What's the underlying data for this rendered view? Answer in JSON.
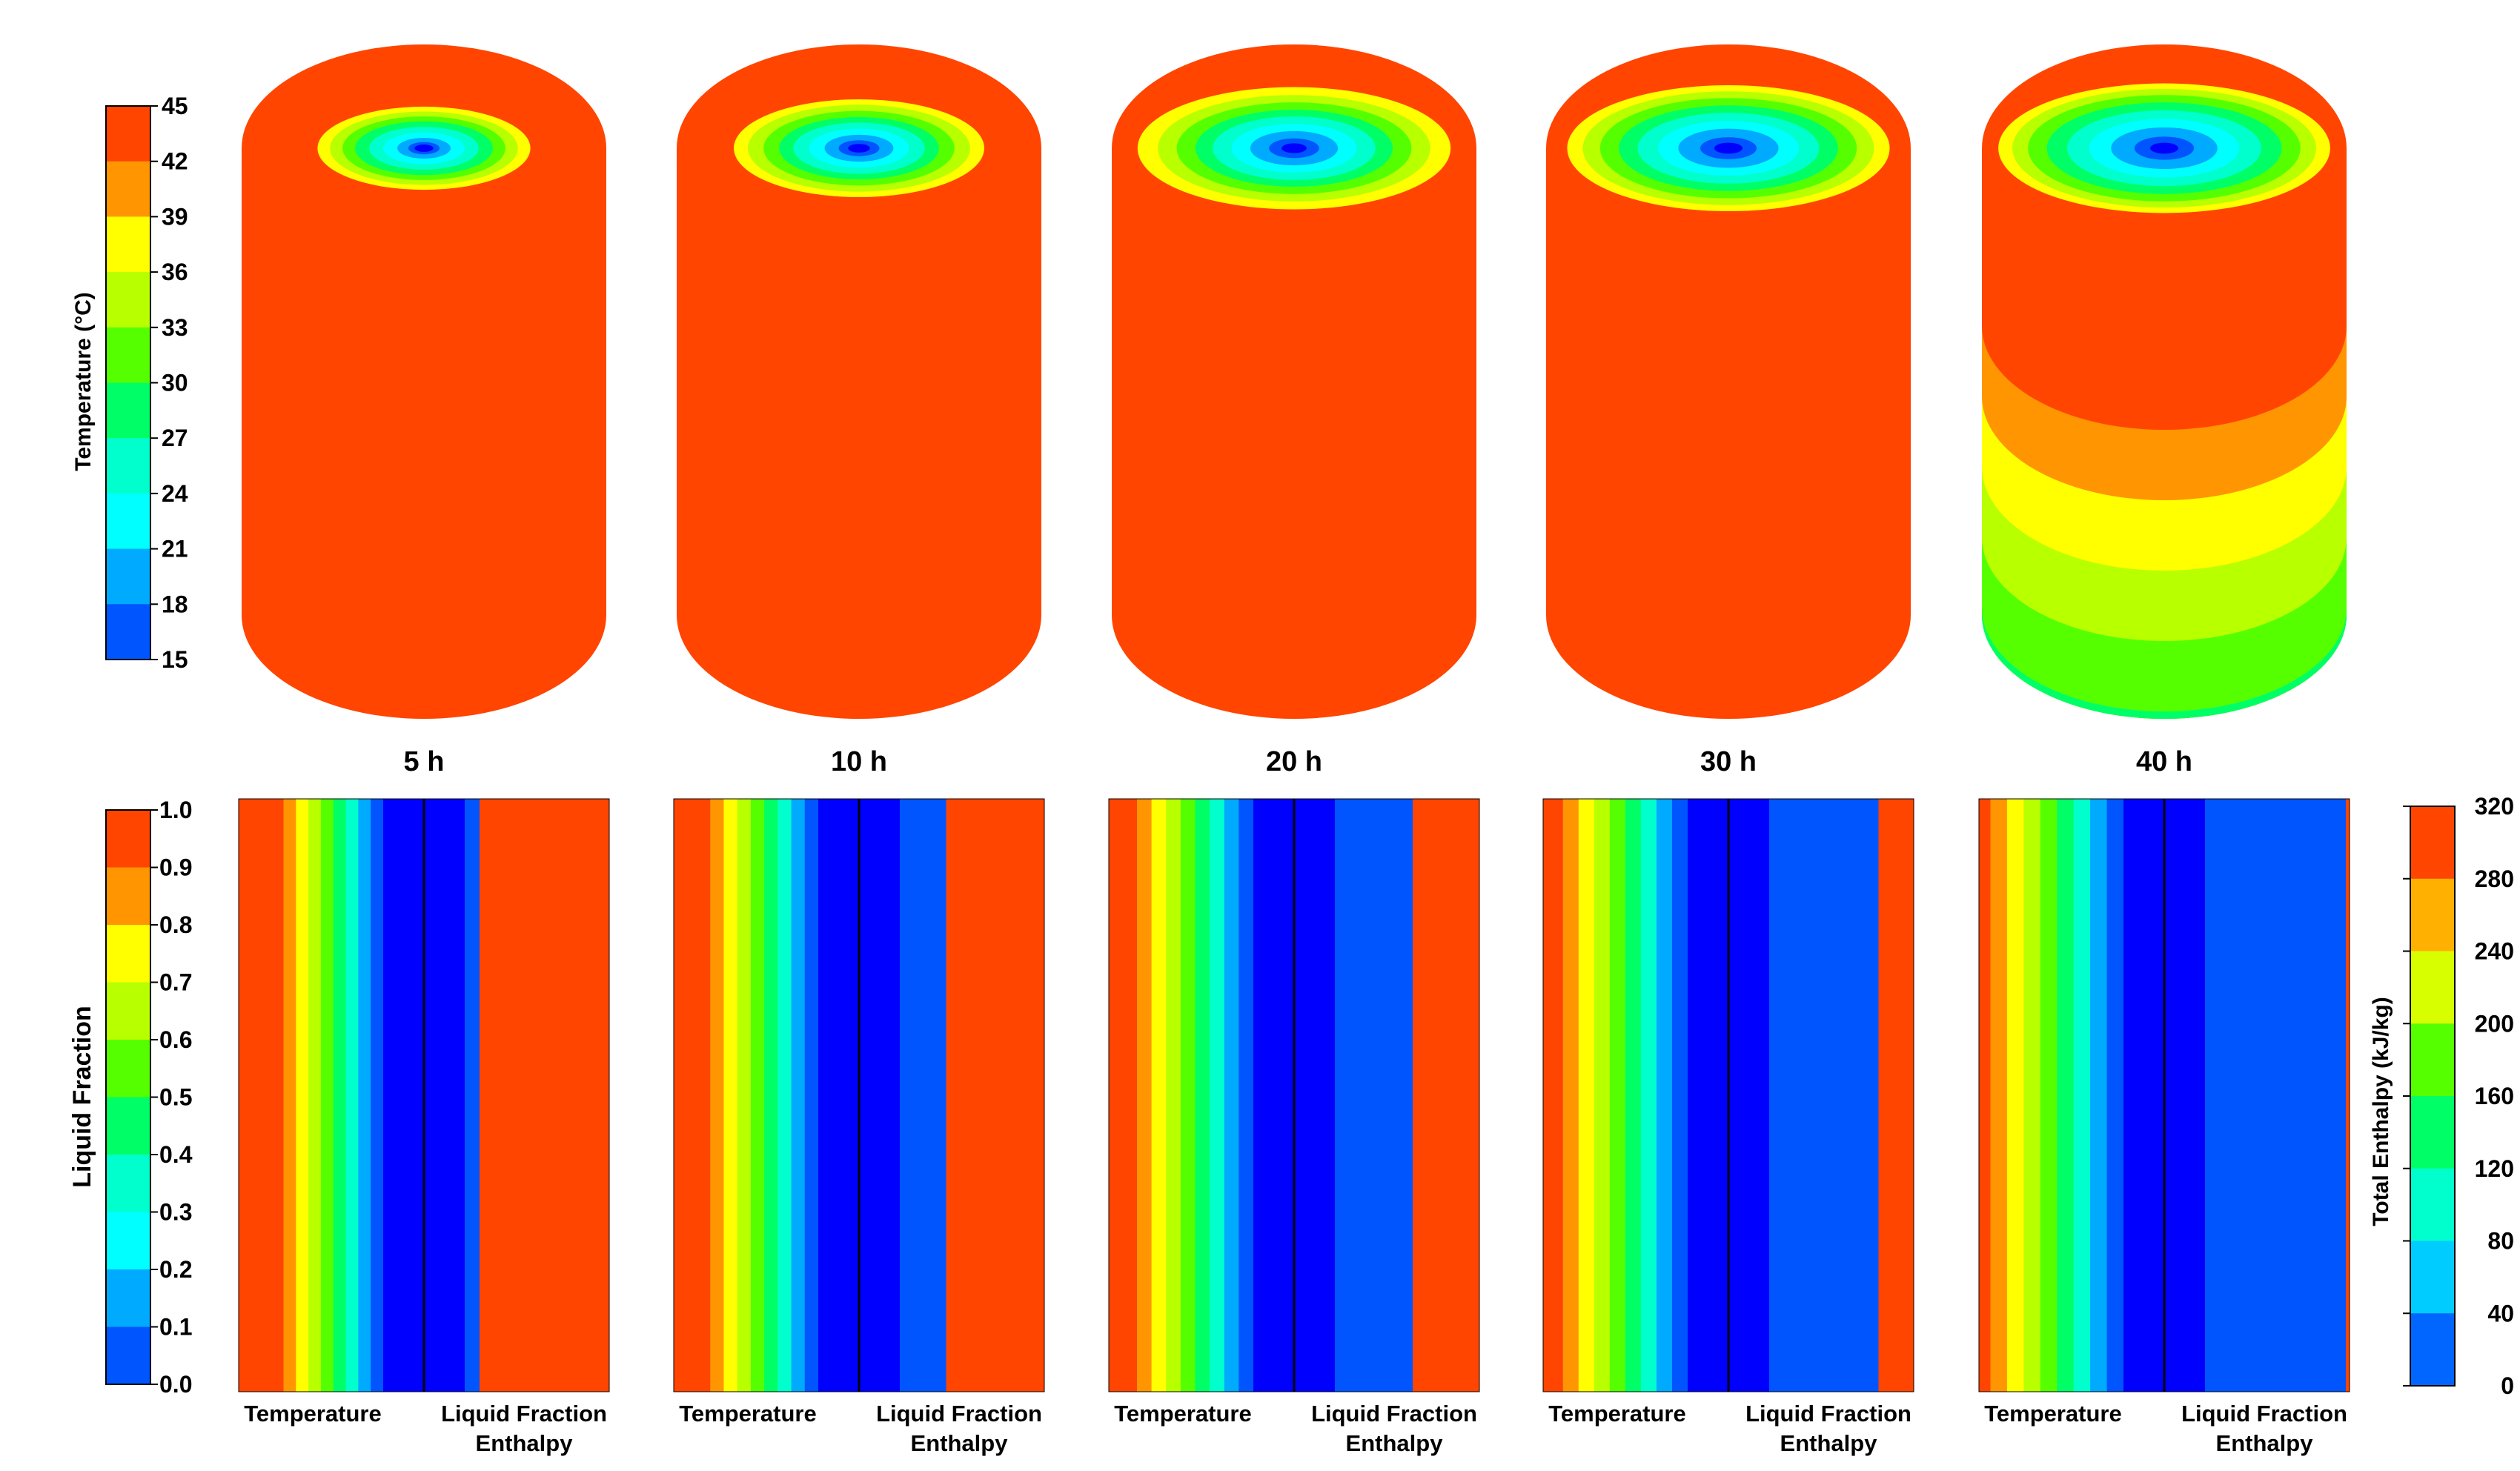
{
  "temperature_legend": {
    "title": "Temperature (°C)",
    "ticks": [
      "45",
      "42",
      "39",
      "36",
      "33",
      "30",
      "27",
      "24",
      "21",
      "18",
      "15"
    ]
  },
  "liquid_legend": {
    "title": "Liquid Fraction",
    "ticks": [
      "1.0",
      "0.9",
      "0.8",
      "0.7",
      "0.6",
      "0.5",
      "0.4",
      "0.3",
      "0.2",
      "0.1",
      "0.0"
    ]
  },
  "enthalpy_legend": {
    "title": "Total Enthalpy (kJ/kg)",
    "ticks": [
      "320",
      "280",
      "240",
      "200",
      "160",
      "120",
      "80",
      "40",
      "0"
    ]
  },
  "palette_hot_to_cold": [
    "#ff4500",
    "#ff9500",
    "#ffff00",
    "#b8ff00",
    "#55ff00",
    "#00ff66",
    "#00ffcc",
    "#00ffff",
    "#00aaff",
    "#0055ff",
    "#0000ff"
  ],
  "palette_enthalpy_hot_to_cold": [
    "#ff4500",
    "#ffb000",
    "#d8ff00",
    "#55ff00",
    "#00ff66",
    "#00ffcc",
    "#00ccff",
    "#0066ff"
  ],
  "panels": [
    {
      "time": "5 h",
      "rings": [
        0.06,
        0.1,
        0.17,
        0.26,
        0.35,
        0.44,
        0.52,
        0.6,
        0.68
      ],
      "bands": [],
      "bottom": {
        "left_label": "Temperature",
        "right_label": "Liquid Fraction",
        "right_sub": "Enthalpy"
      }
    },
    {
      "time": "10 h",
      "rings": [
        0.07,
        0.13,
        0.22,
        0.32,
        0.42,
        0.51,
        0.61,
        0.71,
        0.8
      ],
      "bands": [],
      "bottom": {
        "left_label": "Temperature",
        "right_label": "Liquid Fraction",
        "right_sub": "Enthalpy"
      }
    },
    {
      "time": "20 h",
      "rings": [
        0.08,
        0.16,
        0.28,
        0.4,
        0.52,
        0.63,
        0.75,
        0.87,
        1.0
      ],
      "bands": [],
      "bottom": {
        "left_label": "Temperature",
        "right_label": "Liquid Fraction",
        "right_sub": "Enthalpy"
      }
    },
    {
      "time": "30 h",
      "rings": [
        0.09,
        0.18,
        0.32,
        0.45,
        0.58,
        0.7,
        0.82,
        0.93,
        1.03
      ],
      "bands": [],
      "bottom": {
        "left_label": "Temperature",
        "right_label": "Liquid Fraction",
        "right_sub": "Enthalpy"
      }
    },
    {
      "time": "40 h",
      "rings": [
        0.09,
        0.19,
        0.34,
        0.48,
        0.62,
        0.75,
        0.87,
        0.97,
        1.06
      ],
      "bands": [
        "#ff9500",
        "#ffff00",
        "#b8ff00",
        "#55ff00",
        "#00ff66"
      ],
      "bottom": {
        "left_label": "Temperature",
        "right_label": "Liquid Fraction",
        "right_sub": "Enthalpy"
      }
    }
  ]
}
